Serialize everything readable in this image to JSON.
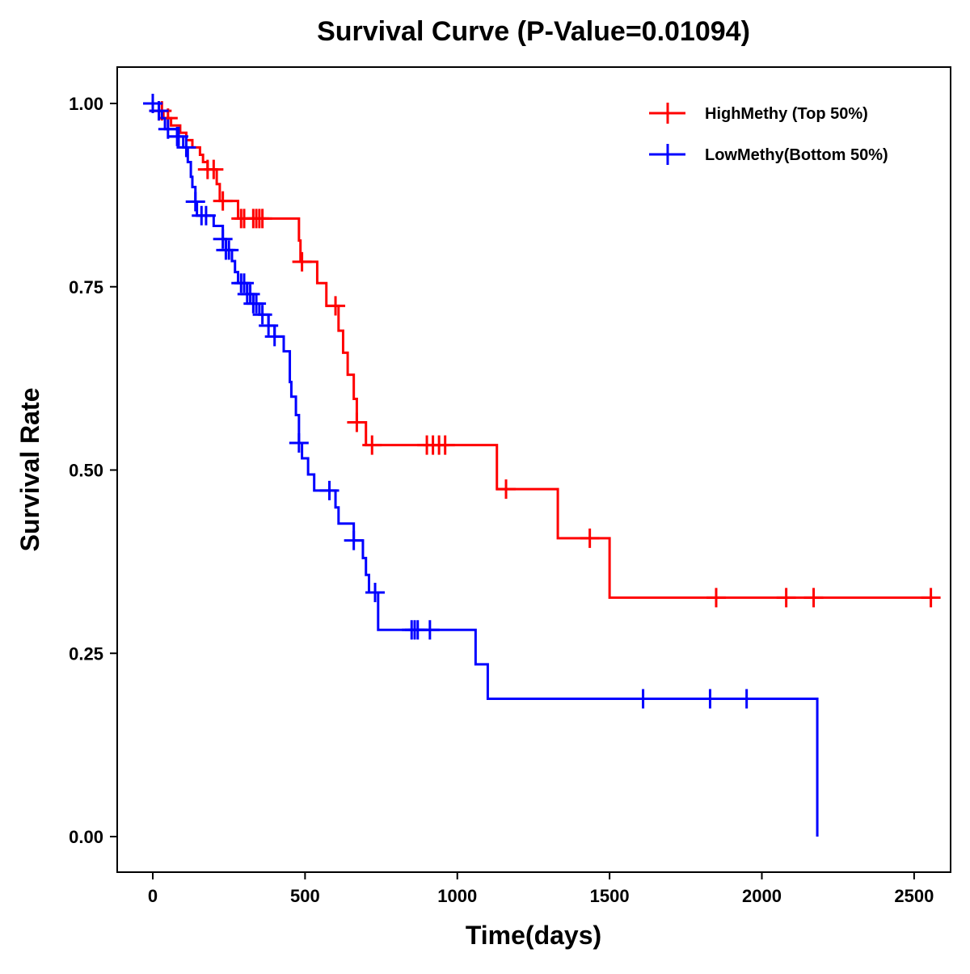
{
  "chart_data": {
    "type": "line",
    "title": "Survival Curve (P-Value=0.01094)",
    "xlabel": "Time(days)",
    "ylabel": "Survival Rate",
    "xlim": [
      -110,
      2620
    ],
    "ylim": [
      -0.05,
      1.05
    ],
    "xticks": [
      0,
      500,
      1000,
      1500,
      2000,
      2500
    ],
    "xtick_labels": [
      "0",
      "500",
      "1000",
      "1500",
      "2000",
      "2500"
    ],
    "yticks": [
      0,
      0.25,
      0.5,
      0.75,
      1.0
    ],
    "ytick_labels": [
      "0.00",
      "0.25",
      "0.50",
      "0.75",
      "1.00"
    ],
    "grid": false,
    "legend_position": "top-right",
    "series": [
      {
        "name": "HighMethy (Top 50%)",
        "color": "#ff0000",
        "steps": [
          [
            0,
            1.0
          ],
          [
            20,
            0.99
          ],
          [
            35,
            0.98
          ],
          [
            60,
            0.97
          ],
          [
            90,
            0.96
          ],
          [
            110,
            0.95
          ],
          [
            130,
            0.94
          ],
          [
            155,
            0.93
          ],
          [
            165,
            0.92
          ],
          [
            180,
            0.91
          ],
          [
            210,
            0.89
          ],
          [
            220,
            0.867
          ],
          [
            280,
            0.843
          ],
          [
            480,
            0.813
          ],
          [
            485,
            0.784
          ],
          [
            540,
            0.755
          ],
          [
            570,
            0.724
          ],
          [
            610,
            0.69
          ],
          [
            625,
            0.66
          ],
          [
            640,
            0.63
          ],
          [
            660,
            0.597
          ],
          [
            670,
            0.565
          ],
          [
            700,
            0.534
          ],
          [
            1130,
            0.474
          ],
          [
            1330,
            0.407
          ],
          [
            1500,
            0.326
          ]
        ],
        "end_time": 2560,
        "censored": [
          20,
          30,
          50,
          180,
          200,
          230,
          290,
          300,
          330,
          340,
          350,
          360,
          490,
          600,
          670,
          720,
          900,
          920,
          940,
          960,
          1160,
          1435,
          1850,
          2080,
          2170,
          2555
        ]
      },
      {
        "name": "LowMethy(Bottom 50%)",
        "color": "#0000ff",
        "steps": [
          [
            0,
            1.0
          ],
          [
            20,
            0.99
          ],
          [
            30,
            0.98
          ],
          [
            40,
            0.965
          ],
          [
            80,
            0.955
          ],
          [
            100,
            0.94
          ],
          [
            115,
            0.92
          ],
          [
            125,
            0.9
          ],
          [
            130,
            0.886
          ],
          [
            140,
            0.866
          ],
          [
            145,
            0.847
          ],
          [
            200,
            0.833
          ],
          [
            230,
            0.815
          ],
          [
            240,
            0.8
          ],
          [
            260,
            0.785
          ],
          [
            270,
            0.77
          ],
          [
            280,
            0.755
          ],
          [
            310,
            0.74
          ],
          [
            330,
            0.727
          ],
          [
            350,
            0.712
          ],
          [
            380,
            0.697
          ],
          [
            400,
            0.682
          ],
          [
            430,
            0.662
          ],
          [
            450,
            0.62
          ],
          [
            455,
            0.6
          ],
          [
            470,
            0.575
          ],
          [
            480,
            0.537
          ],
          [
            490,
            0.516
          ],
          [
            510,
            0.494
          ],
          [
            530,
            0.472
          ],
          [
            600,
            0.449
          ],
          [
            610,
            0.427
          ],
          [
            660,
            0.404
          ],
          [
            690,
            0.38
          ],
          [
            700,
            0.357
          ],
          [
            710,
            0.333
          ],
          [
            740,
            0.282
          ],
          [
            1060,
            0.235
          ],
          [
            1100,
            0.188
          ],
          [
            2182,
            0.0
          ]
        ],
        "end_time": 2182,
        "censored": [
          0,
          20,
          50,
          80,
          85,
          110,
          140,
          160,
          175,
          230,
          240,
          250,
          290,
          300,
          310,
          320,
          330,
          340,
          360,
          380,
          400,
          480,
          580,
          660,
          730,
          850,
          860,
          870,
          910,
          1610,
          1830,
          1950
        ]
      }
    ]
  }
}
